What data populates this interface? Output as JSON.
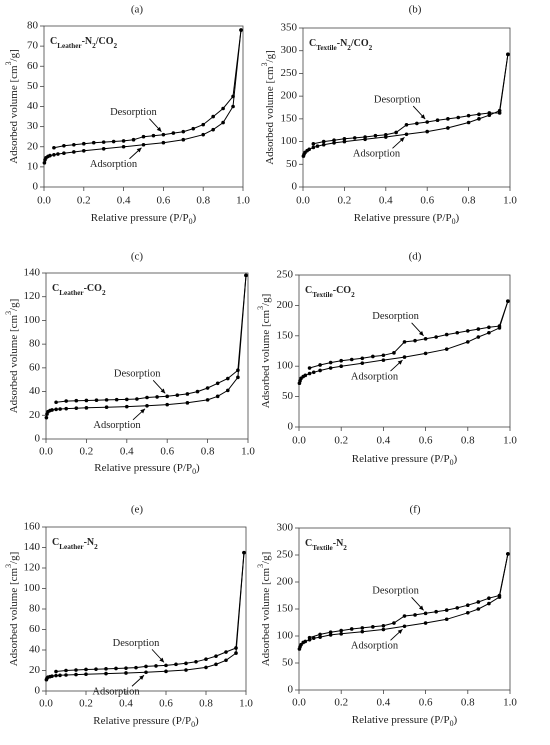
{
  "chart_data": [
    {
      "type": "line",
      "title": "(a)",
      "sample_label": [
        "C",
        "Leather",
        "-N",
        "2",
        "/CO",
        "2"
      ],
      "x_label": [
        "Relative pressure (P/P",
        "0",
        ")"
      ],
      "y_label": [
        "Adsorbed volume [cm",
        "3",
        "/g]"
      ],
      "xlim": [
        0,
        1
      ],
      "xticks": [
        {
          "value": 0,
          "label": "0.0"
        },
        0.2,
        0.4,
        0.6,
        0.8,
        {
          "value": 1,
          "label": "1.0"
        }
      ],
      "ylim": [
        0,
        80
      ],
      "yticks": [
        0,
        10,
        20,
        30,
        40,
        50,
        60,
        70,
        80
      ],
      "series": [
        {
          "name": "Adsorption",
          "color": "#000000",
          "x": [
            0.002,
            0.005,
            0.01,
            0.02,
            0.03,
            0.05,
            0.07,
            0.1,
            0.15,
            0.2,
            0.3,
            0.4,
            0.5,
            0.6,
            0.7,
            0.8,
            0.85,
            0.9,
            0.95,
            0.99
          ],
          "values": [
            12,
            13.5,
            14.5,
            15.2,
            15.6,
            16,
            16.4,
            16.8,
            17.4,
            18,
            19,
            20,
            21,
            22,
            23.5,
            26,
            28.5,
            32,
            40,
            78
          ]
        },
        {
          "name": "Desorption",
          "color": "#000000",
          "x": [
            0.05,
            0.1,
            0.15,
            0.2,
            0.25,
            0.3,
            0.35,
            0.4,
            0.45,
            0.5,
            0.55,
            0.6,
            0.65,
            0.7,
            0.75,
            0.8,
            0.85,
            0.9,
            0.95,
            0.99
          ],
          "values": [
            19.5,
            20.5,
            21,
            21.5,
            22,
            22.3,
            22.6,
            22.9,
            23.5,
            25,
            25.5,
            26,
            26.8,
            27.5,
            29,
            31,
            35,
            39,
            45,
            78
          ]
        }
      ]
    },
    {
      "type": "line",
      "title": "(b)",
      "sample_label": [
        "C",
        "Textile",
        "-N",
        "2",
        "/CO",
        "2"
      ],
      "x_label": [
        "Relative pressure (P/P",
        "0",
        ")"
      ],
      "y_label": [
        "Adsorbed volume [cm",
        "3",
        "/g]"
      ],
      "xlim": [
        0,
        1
      ],
      "xticks": [
        {
          "value": 0,
          "label": "0.0"
        },
        0.2,
        0.4,
        0.6,
        0.8,
        {
          "value": 1,
          "label": "1.0"
        }
      ],
      "ylim": [
        0,
        350
      ],
      "yticks": [
        0,
        50,
        100,
        150,
        200,
        250,
        300,
        350
      ],
      "series": [
        {
          "name": "Adsorption",
          "color": "#000000",
          "x": [
            0.002,
            0.005,
            0.01,
            0.02,
            0.03,
            0.05,
            0.07,
            0.1,
            0.15,
            0.2,
            0.3,
            0.4,
            0.5,
            0.6,
            0.7,
            0.8,
            0.85,
            0.9,
            0.95,
            0.99
          ],
          "values": [
            68,
            72,
            76,
            80,
            83,
            87,
            90,
            93,
            97,
            100,
            105,
            110,
            116,
            122,
            130,
            142,
            150,
            158,
            168,
            292
          ]
        },
        {
          "name": "Desorption",
          "color": "#000000",
          "x": [
            0.05,
            0.1,
            0.15,
            0.2,
            0.25,
            0.3,
            0.35,
            0.4,
            0.45,
            0.5,
            0.55,
            0.6,
            0.65,
            0.7,
            0.75,
            0.8,
            0.85,
            0.9,
            0.95,
            0.99
          ],
          "values": [
            95,
            100,
            103,
            106,
            108,
            110,
            113,
            115,
            120,
            137,
            140,
            143,
            147,
            150,
            153,
            157,
            160,
            163,
            163,
            292
          ]
        }
      ]
    },
    {
      "type": "line",
      "title": "(c)",
      "sample_label": [
        "C",
        "Leather",
        "-CO",
        "2"
      ],
      "x_label": [
        "Relative pressure (P/P",
        "0",
        ")"
      ],
      "y_label": [
        "Adsorbed volume [cm",
        "3",
        "/g]"
      ],
      "xlim": [
        0,
        1
      ],
      "xticks": [
        {
          "value": 0,
          "label": "0.0"
        },
        0.2,
        0.4,
        0.6,
        0.8,
        {
          "value": 1,
          "label": "1.0"
        }
      ],
      "ylim": [
        0,
        140
      ],
      "yticks": [
        0,
        20,
        40,
        60,
        80,
        100,
        120,
        140
      ],
      "series": [
        {
          "name": "Adsorption",
          "color": "#000000",
          "x": [
            0.002,
            0.005,
            0.01,
            0.02,
            0.03,
            0.05,
            0.07,
            0.1,
            0.15,
            0.2,
            0.3,
            0.4,
            0.5,
            0.6,
            0.7,
            0.8,
            0.85,
            0.9,
            0.95,
            0.99
          ],
          "values": [
            18,
            21,
            23,
            24,
            24.5,
            25,
            25.3,
            25.6,
            26,
            26.3,
            26.8,
            27.3,
            28,
            29,
            30.5,
            33,
            36,
            41,
            52,
            138
          ]
        },
        {
          "name": "Desorption",
          "color": "#000000",
          "x": [
            0.05,
            0.1,
            0.15,
            0.2,
            0.25,
            0.3,
            0.35,
            0.4,
            0.45,
            0.5,
            0.55,
            0.6,
            0.65,
            0.7,
            0.75,
            0.8,
            0.85,
            0.9,
            0.95,
            0.99
          ],
          "values": [
            31,
            32,
            32.3,
            32.5,
            32.7,
            33,
            33.2,
            33.4,
            33.7,
            35,
            35.5,
            36,
            37,
            38,
            40,
            43,
            47,
            51,
            58,
            138
          ]
        }
      ]
    },
    {
      "type": "line",
      "title": "(d)",
      "sample_label": [
        "C",
        "Textile",
        "-CO",
        "2"
      ],
      "x_label": [
        "Relative pressure (P/P",
        "0",
        ")"
      ],
      "y_label": [
        "Adsorbed volume [cm",
        "3",
        "/g]"
      ],
      "xlim": [
        0,
        1
      ],
      "xticks": [
        {
          "value": 0,
          "label": "0.0"
        },
        0.2,
        0.4,
        0.6,
        0.8,
        {
          "value": 1,
          "label": "1.0"
        }
      ],
      "ylim": [
        0,
        250
      ],
      "yticks": [
        0,
        50,
        100,
        150,
        200,
        250
      ],
      "series": [
        {
          "name": "Adsorption",
          "color": "#000000",
          "x": [
            0.002,
            0.005,
            0.01,
            0.02,
            0.03,
            0.05,
            0.07,
            0.1,
            0.15,
            0.2,
            0.3,
            0.4,
            0.5,
            0.6,
            0.7,
            0.8,
            0.85,
            0.9,
            0.95,
            0.99
          ],
          "values": [
            72,
            76,
            80,
            83,
            85,
            88,
            90,
            93,
            97,
            100,
            105,
            110,
            115,
            121,
            128,
            140,
            148,
            155,
            163,
            207
          ]
        },
        {
          "name": "Desorption",
          "color": "#000000",
          "x": [
            0.05,
            0.1,
            0.15,
            0.2,
            0.25,
            0.3,
            0.35,
            0.4,
            0.45,
            0.5,
            0.55,
            0.6,
            0.65,
            0.7,
            0.75,
            0.8,
            0.85,
            0.9,
            0.95,
            0.99
          ],
          "values": [
            97,
            102,
            106,
            109,
            111,
            113,
            116,
            118,
            122,
            140,
            142,
            145,
            148,
            152,
            155,
            158,
            161,
            164,
            166,
            207
          ]
        }
      ]
    },
    {
      "type": "line",
      "title": "(e)",
      "sample_label": [
        "C",
        "Leather",
        "-N",
        "2"
      ],
      "x_label": [
        "Relative pressure (P/P",
        "0",
        ")"
      ],
      "y_label": [
        "Adsorbed volume [cm",
        "3",
        "/g]"
      ],
      "xlim": [
        0,
        1
      ],
      "xticks": [
        {
          "value": 0,
          "label": "0.0"
        },
        0.2,
        0.4,
        0.6,
        0.8,
        {
          "value": 1,
          "label": "1.0"
        }
      ],
      "ylim": [
        0,
        160
      ],
      "yticks": [
        0,
        20,
        40,
        60,
        80,
        100,
        120,
        140,
        160
      ],
      "series": [
        {
          "name": "Adsorption",
          "color": "#000000",
          "x": [
            0.002,
            0.005,
            0.01,
            0.02,
            0.03,
            0.05,
            0.07,
            0.1,
            0.15,
            0.2,
            0.3,
            0.4,
            0.5,
            0.6,
            0.7,
            0.8,
            0.85,
            0.9,
            0.95,
            0.99
          ],
          "values": [
            11,
            12.5,
            13.5,
            14,
            14.5,
            15,
            15.3,
            15.6,
            16,
            16.4,
            17,
            17.6,
            18.3,
            19.2,
            20.5,
            23,
            26,
            30,
            37,
            135
          ]
        },
        {
          "name": "Desorption",
          "color": "#000000",
          "x": [
            0.05,
            0.1,
            0.15,
            0.2,
            0.25,
            0.3,
            0.35,
            0.4,
            0.45,
            0.5,
            0.55,
            0.6,
            0.65,
            0.7,
            0.75,
            0.8,
            0.85,
            0.9,
            0.95,
            0.99
          ],
          "values": [
            19,
            20,
            20.5,
            21,
            21.3,
            21.6,
            22,
            22.3,
            22.8,
            24,
            24.5,
            25,
            26,
            27,
            28.5,
            31,
            34,
            38,
            42,
            135
          ]
        }
      ]
    },
    {
      "type": "line",
      "title": "(f)",
      "sample_label": [
        "C",
        "Textile",
        "-N",
        "2"
      ],
      "x_label": [
        "Relative pressure (P/P",
        "0",
        ")"
      ],
      "y_label": [
        "Adsorbed volume [cm",
        "3",
        "/g]"
      ],
      "xlim": [
        0,
        1
      ],
      "xticks": [
        {
          "value": 0,
          "label": "0.0"
        },
        0.2,
        0.4,
        0.6,
        0.8,
        {
          "value": 1,
          "label": "1.0"
        }
      ],
      "ylim": [
        0,
        300
      ],
      "yticks": [
        0,
        50,
        100,
        150,
        200,
        250,
        300
      ],
      "series": [
        {
          "name": "Adsorption",
          "color": "#000000",
          "x": [
            0.002,
            0.005,
            0.01,
            0.02,
            0.03,
            0.05,
            0.07,
            0.1,
            0.15,
            0.2,
            0.3,
            0.4,
            0.5,
            0.6,
            0.7,
            0.8,
            0.85,
            0.9,
            0.95,
            0.99
          ],
          "values": [
            76,
            80,
            84,
            88,
            90,
            93,
            96,
            98,
            102,
            104,
            108,
            112,
            118,
            124,
            131,
            143,
            150,
            160,
            172,
            252
          ]
        },
        {
          "name": "Desorption",
          "color": "#000000",
          "x": [
            0.05,
            0.1,
            0.15,
            0.2,
            0.25,
            0.3,
            0.35,
            0.4,
            0.45,
            0.5,
            0.55,
            0.6,
            0.65,
            0.7,
            0.75,
            0.8,
            0.85,
            0.9,
            0.95,
            0.99
          ],
          "values": [
            97,
            103,
            107,
            110,
            113,
            115,
            117,
            119,
            124,
            137,
            139,
            142,
            145,
            148,
            152,
            157,
            163,
            170,
            175,
            252
          ]
        }
      ]
    }
  ]
}
